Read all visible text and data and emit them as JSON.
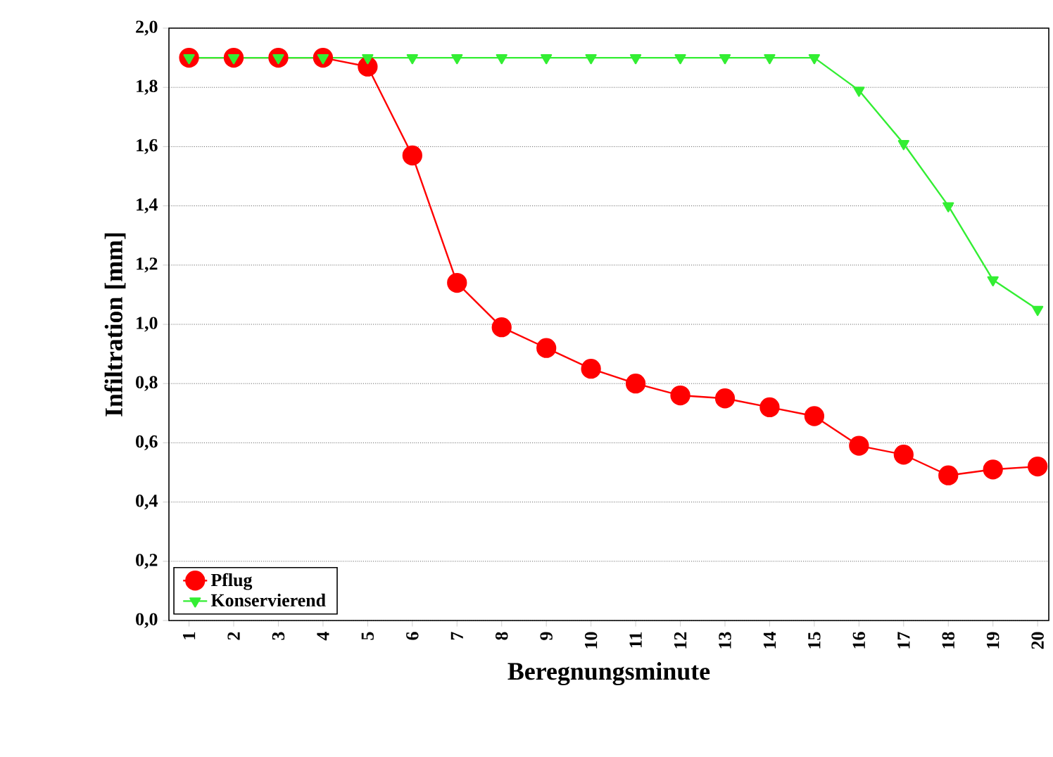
{
  "chart_data": {
    "type": "line",
    "xlabel": "Beregnungsminute",
    "ylabel": "Infiltration [mm]",
    "categories": [
      "1",
      "2",
      "3",
      "4",
      "5",
      "6",
      "7",
      "8",
      "9",
      "10",
      "11",
      "12",
      "13",
      "14",
      "15",
      "16",
      "17",
      "18",
      "19",
      "20"
    ],
    "ylim": [
      0,
      2
    ],
    "yticks": [
      {
        "value": 0,
        "label": "0,0"
      },
      {
        "value": 0.2,
        "label": "0,2"
      },
      {
        "value": 0.4,
        "label": "0,4"
      },
      {
        "value": 0.6,
        "label": "0,6"
      },
      {
        "value": 0.8,
        "label": "0,8"
      },
      {
        "value": 1.0,
        "label": "1,0"
      },
      {
        "value": 1.2,
        "label": "1,2"
      },
      {
        "value": 1.4,
        "label": "1,4"
      },
      {
        "value": 1.6,
        "label": "1,6"
      },
      {
        "value": 1.8,
        "label": "1,8"
      },
      {
        "value": 2.0,
        "label": "2,0"
      }
    ],
    "grid": "y",
    "legend": "bottom left",
    "series": [
      {
        "name": "Pflug",
        "color": "#ff0000",
        "marker": "circle",
        "values": [
          1.9,
          1.9,
          1.9,
          1.9,
          1.87,
          1.57,
          1.14,
          0.99,
          0.92,
          0.85,
          0.8,
          0.76,
          0.75,
          0.72,
          0.69,
          0.59,
          0.56,
          0.49,
          0.51,
          0.52
        ]
      },
      {
        "name": "Konservierend",
        "color": "#33ee33",
        "marker": "triangle",
        "values": [
          1.9,
          1.9,
          1.9,
          1.9,
          1.9,
          1.9,
          1.9,
          1.9,
          1.9,
          1.9,
          1.9,
          1.9,
          1.9,
          1.9,
          1.9,
          1.79,
          1.61,
          1.4,
          1.15,
          1.05
        ]
      }
    ]
  }
}
